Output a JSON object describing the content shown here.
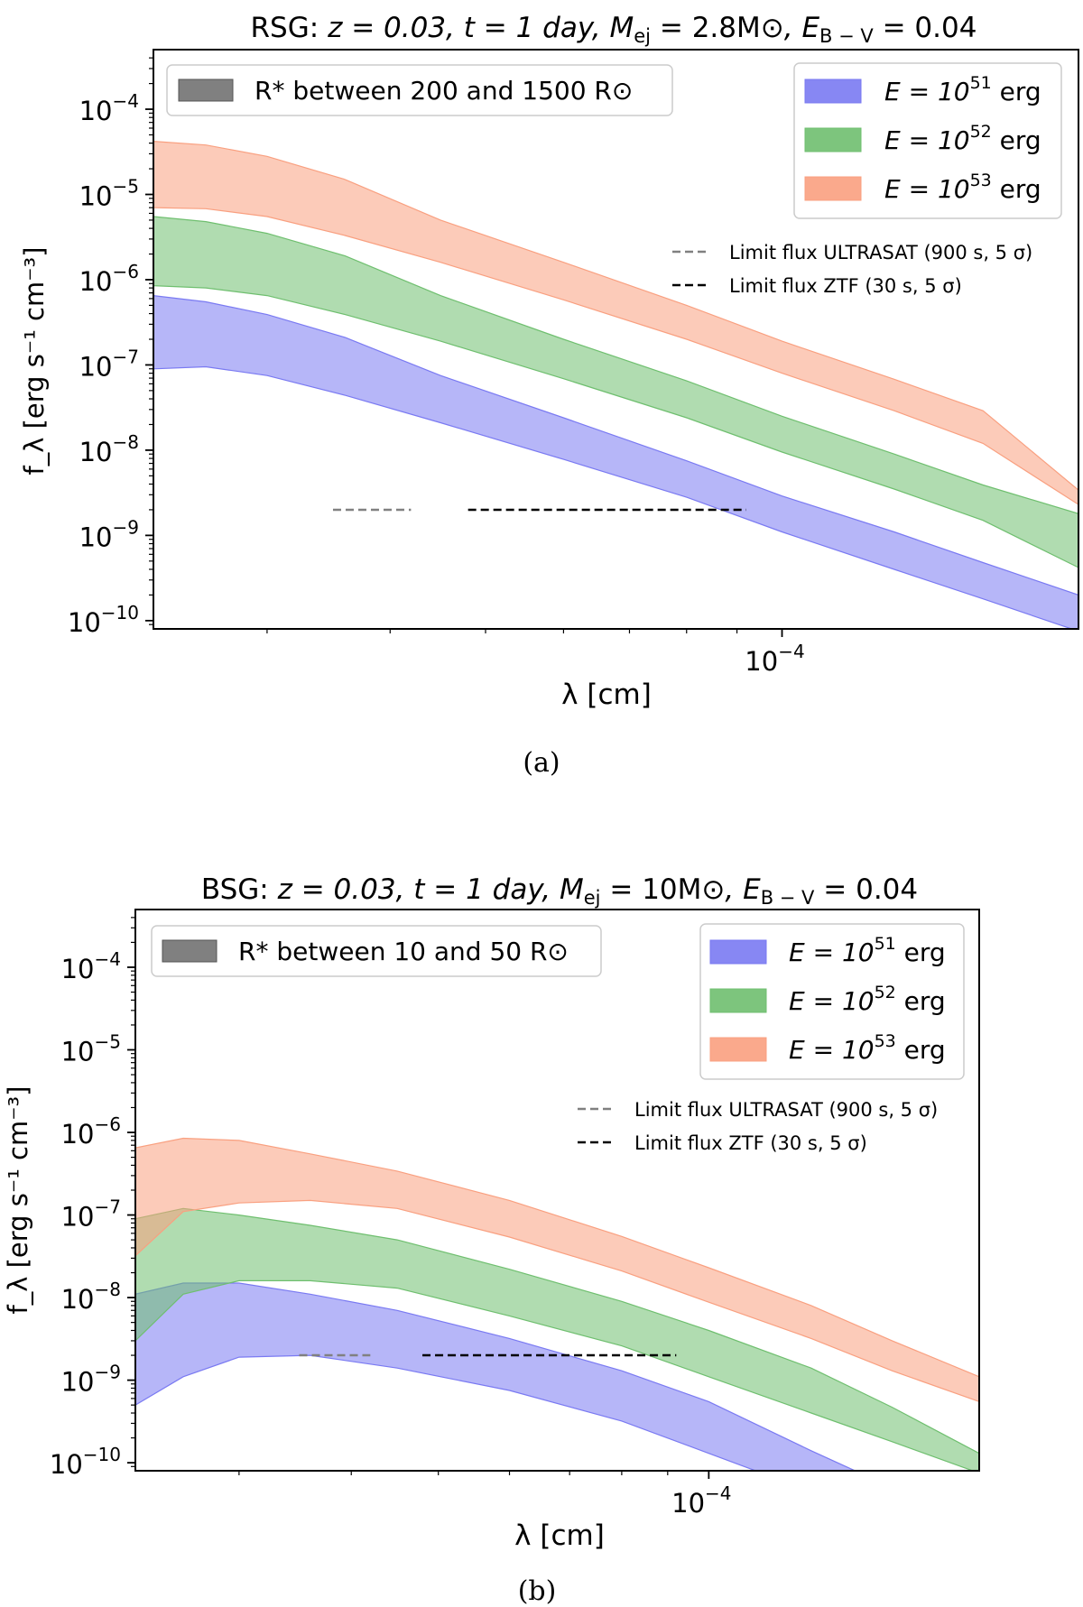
{
  "figure": {
    "panel_a_caption": "(a)",
    "panel_b_caption": "(b)"
  },
  "chart_data": [
    {
      "type": "area",
      "title": "RSG: z = 0.03, t = 1 day, M_ej = 2.8M⊙, E_B−V = 0.04",
      "title_parts": {
        "prefix": "RSG: ",
        "z": "z = 0.03, ",
        "t": "t = 1 day, ",
        "m_label": "M",
        "m_sub": "ej",
        "m_value": " = 2.8M",
        "sun": "⊙",
        "e_label": ", E",
        "e_sub": "B − V",
        "e_value": " = 0.04"
      },
      "xlabel": "λ [cm]",
      "ylabel": "f_λ [erg s⁻¹ cm⁻³]",
      "x_scale": "log",
      "y_scale": "log",
      "xlim": [
        2.3e-05,
        0.0002
      ],
      "ylim": [
        8e-11,
        0.0005
      ],
      "x_ticks": [
        {
          "value": 0.0001,
          "label": "10",
          "exp": "−4"
        }
      ],
      "y_ticks": [
        {
          "value": 0.0001,
          "label": "10",
          "exp": "−4"
        },
        {
          "value": 1e-05,
          "label": "10",
          "exp": "−5"
        },
        {
          "value": 1e-06,
          "label": "10",
          "exp": "−6"
        },
        {
          "value": 1e-07,
          "label": "10",
          "exp": "−7"
        },
        {
          "value": 1e-08,
          "label": "10",
          "exp": "−8"
        },
        {
          "value": 1e-09,
          "label": "10",
          "exp": "−9"
        },
        {
          "value": 1e-10,
          "label": "10",
          "exp": "−10"
        }
      ],
      "legend_radius": {
        "text": "R* between 200 and 1500 R⊙",
        "placement": "top-left",
        "color": "#808080"
      },
      "legend_placement": "top-right",
      "series": [
        {
          "name": "E = 10^51 erg",
          "label_base": "E = 10",
          "label_exp": "51",
          "label_unit": " erg",
          "color": "#7a7af2",
          "x": [
            2.3e-05,
            2.6e-05,
            3e-05,
            3.6e-05,
            4.5e-05,
            6e-05,
            8e-05,
            0.0001,
            0.00013,
            0.00016,
            0.0002
          ],
          "upper": [
            6.5e-07,
            5.5e-07,
            3.9e-07,
            2.1e-07,
            7.5e-08,
            2.4e-08,
            7.5e-09,
            2.9e-09,
            1.1e-09,
            4.8e-10,
            2e-10
          ],
          "lower": [
            9e-08,
            9.5e-08,
            7.5e-08,
            4.4e-08,
            2.1e-08,
            7.8e-09,
            2.8e-09,
            1.1e-09,
            4e-10,
            1.8e-10,
            7.5e-11
          ]
        },
        {
          "name": "E = 10^52 erg",
          "label_base": "E = 10",
          "label_exp": "52",
          "label_unit": " erg",
          "color": "#6fbf6f",
          "x": [
            2.3e-05,
            2.6e-05,
            3e-05,
            3.6e-05,
            4.5e-05,
            6e-05,
            8e-05,
            0.0001,
            0.00013,
            0.00016,
            0.0002
          ],
          "upper": [
            5.5e-06,
            4.8e-06,
            3.5e-06,
            1.9e-06,
            6.5e-07,
            2e-07,
            6.5e-08,
            2.5e-08,
            9e-09,
            3.9e-09,
            1.8e-09
          ],
          "lower": [
            8.5e-07,
            8e-07,
            6.5e-07,
            3.9e-07,
            1.9e-07,
            6.9e-08,
            2.4e-08,
            9.5e-09,
            3.5e-09,
            1.5e-09,
            4.2e-10
          ]
        },
        {
          "name": "E = 10^53 erg",
          "label_base": "E = 10",
          "label_exp": "53",
          "label_unit": " erg",
          "color": "#f9a080",
          "x": [
            2.3e-05,
            2.6e-05,
            3e-05,
            3.6e-05,
            4.5e-05,
            6e-05,
            8e-05,
            0.0001,
            0.00013,
            0.00016,
            0.0002
          ],
          "upper": [
            4.2e-05,
            3.8e-05,
            2.8e-05,
            1.5e-05,
            5e-06,
            1.6e-06,
            5e-07,
            1.9e-07,
            6.8e-08,
            2.9e-08,
            3.4e-09
          ],
          "lower": [
            7e-06,
            6.8e-06,
            5.5e-06,
            3.3e-06,
            1.6e-06,
            5.8e-07,
            2e-07,
            8e-08,
            2.9e-08,
            1.2e-08,
            2.3e-09
          ]
        }
      ],
      "limits": [
        {
          "name": "Limit flux ULTRASAT (900 s, 5 σ)",
          "color": "#808080",
          "x": [
            3.5e-05,
            4.2e-05
          ],
          "y": 2e-09
        },
        {
          "name": "Limit flux ZTF (30 s, 5 σ)",
          "color": "#000000",
          "x": [
            4.8e-05,
            9.2e-05
          ],
          "y": 2e-09
        }
      ]
    },
    {
      "type": "area",
      "title": "BSG: z = 0.03, t = 1 day, M_ej = 10M⊙, E_B−V = 0.04",
      "title_parts": {
        "prefix": "BSG: ",
        "z": "z = 0.03, ",
        "t": "t = 1 day, ",
        "m_label": "M",
        "m_sub": "ej",
        "m_value": " = 10M",
        "sun": "⊙",
        "e_label": ", E",
        "e_sub": "B − V",
        "e_value": " = 0.04"
      },
      "xlabel": "λ [cm]",
      "ylabel": "f_λ [erg s⁻¹ cm⁻³]",
      "x_scale": "log",
      "y_scale": "log",
      "xlim": [
        2.3e-05,
        0.0002
      ],
      "ylim": [
        8e-11,
        0.0005
      ],
      "x_ticks": [
        {
          "value": 0.0001,
          "label": "10",
          "exp": "−4"
        }
      ],
      "y_ticks": [
        {
          "value": 0.0001,
          "label": "10",
          "exp": "−4"
        },
        {
          "value": 1e-05,
          "label": "10",
          "exp": "−5"
        },
        {
          "value": 1e-06,
          "label": "10",
          "exp": "−6"
        },
        {
          "value": 1e-07,
          "label": "10",
          "exp": "−7"
        },
        {
          "value": 1e-08,
          "label": "10",
          "exp": "−8"
        },
        {
          "value": 1e-09,
          "label": "10",
          "exp": "−9"
        },
        {
          "value": 1e-10,
          "label": "10",
          "exp": "−10"
        }
      ],
      "legend_radius": {
        "text": "R* between 10 and 50 R⊙",
        "placement": "top-left",
        "color": "#808080"
      },
      "legend_placement": "top-right",
      "series": [
        {
          "name": "E = 10^51 erg",
          "label_base": "E = 10",
          "label_exp": "51",
          "label_unit": " erg",
          "color": "#7a7af2",
          "x": [
            2.3e-05,
            2.6e-05,
            3e-05,
            3.6e-05,
            4.5e-05,
            6e-05,
            8e-05,
            0.0001,
            0.00013,
            0.00016,
            0.0002
          ],
          "upper": [
            1.1e-08,
            1.5e-08,
            1.5e-08,
            1.1e-08,
            7e-09,
            3.2e-09,
            1.3e-09,
            5.5e-10,
            1.4e-10,
            5e-11,
            2e-11
          ],
          "lower": [
            5e-10,
            1.1e-09,
            1.9e-09,
            2e-09,
            1.4e-09,
            7.5e-10,
            3.2e-10,
            1.3e-10,
            4.5e-11,
            2e-11,
            8e-12
          ]
        },
        {
          "name": "E = 10^52 erg",
          "label_base": "E = 10",
          "label_exp": "52",
          "label_unit": " erg",
          "color": "#6fbf6f",
          "x": [
            2.3e-05,
            2.6e-05,
            3e-05,
            3.6e-05,
            4.5e-05,
            6e-05,
            8e-05,
            0.0001,
            0.00013,
            0.00016,
            0.0002
          ],
          "upper": [
            9e-08,
            1.2e-07,
            1e-07,
            7.5e-08,
            5e-08,
            2.2e-08,
            9e-09,
            4e-09,
            1.4e-09,
            4.7e-10,
            1.3e-10
          ],
          "lower": [
            3e-09,
            1.1e-08,
            1.6e-08,
            1.6e-08,
            1.3e-08,
            6e-09,
            2.6e-09,
            1.1e-09,
            4e-10,
            1.8e-10,
            7.5e-11
          ]
        },
        {
          "name": "E = 10^53 erg",
          "label_base": "E = 10",
          "label_exp": "53",
          "label_unit": " erg",
          "color": "#f9a080",
          "x": [
            2.3e-05,
            2.6e-05,
            3e-05,
            3.6e-05,
            4.5e-05,
            6e-05,
            8e-05,
            0.0001,
            0.00013,
            0.00016,
            0.0002
          ],
          "upper": [
            6.5e-07,
            8.5e-07,
            8e-07,
            5.5e-07,
            3.4e-07,
            1.5e-07,
            5.5e-08,
            2.3e-08,
            8e-09,
            3e-09,
            1.1e-09
          ],
          "lower": [
            3.2e-08,
            1.1e-07,
            1.4e-07,
            1.5e-07,
            1.2e-07,
            5.4e-08,
            2.1e-08,
            8.8e-09,
            3.2e-09,
            1.3e-09,
            5.5e-10
          ]
        }
      ],
      "limits": [
        {
          "name": "Limit flux ULTRASAT (900 s, 5 σ)",
          "color": "#808080",
          "x": [
            3.5e-05,
            4.2e-05
          ],
          "y": 2e-09
        },
        {
          "name": "Limit flux ZTF (30 s, 5 σ)",
          "color": "#000000",
          "x": [
            4.8e-05,
            9.2e-05
          ],
          "y": 2e-09
        }
      ]
    }
  ]
}
